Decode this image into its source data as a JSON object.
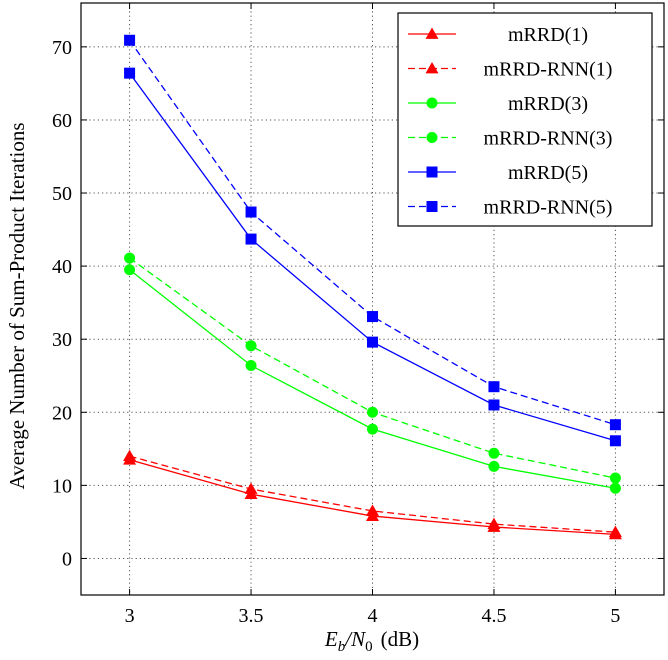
{
  "chart_data": {
    "type": "line",
    "title": "",
    "xlabel": "E_b/N_0 (dB)",
    "xlabel_main": "E",
    "xlabel_sub1": "b",
    "xlabel_slash": "/N",
    "xlabel_sub2": "0",
    "xlabel_unit": "(dB)",
    "ylabel": "Average Number of Sum-Product Iterations",
    "x": [
      3,
      3.5,
      4,
      4.5,
      5
    ],
    "xticks": [
      "3",
      "3.5",
      "4",
      "4.5",
      "5"
    ],
    "yticks": [
      0,
      10,
      20,
      30,
      40,
      50,
      60,
      70
    ],
    "ytick_labels": [
      "0",
      "10",
      "20",
      "30",
      "40",
      "50",
      "60",
      "70"
    ],
    "xlim": [
      2.8,
      5.2
    ],
    "ylim": [
      -5,
      76
    ],
    "grid": true,
    "legend_position": "top-right",
    "series": [
      {
        "name": "mRRD(1)",
        "values": [
          13.5,
          8.8,
          5.8,
          4.3,
          3.3
        ],
        "color": "#ff0000",
        "dash": "solid",
        "marker": "triangle"
      },
      {
        "name": "mRRD-RNN(1)",
        "values": [
          14.0,
          9.5,
          6.5,
          4.7,
          3.6
        ],
        "color": "#ff0000",
        "dash": "dashed",
        "marker": "triangle"
      },
      {
        "name": "mRRD(3)",
        "values": [
          39.5,
          26.4,
          17.7,
          12.6,
          9.6
        ],
        "color": "#00ff00",
        "dash": "solid",
        "marker": "circle"
      },
      {
        "name": "mRRD-RNN(3)",
        "values": [
          41.1,
          29.1,
          20.0,
          14.4,
          11.0
        ],
        "color": "#00ff00",
        "dash": "dashed",
        "marker": "circle"
      },
      {
        "name": "mRRD(5)",
        "values": [
          66.4,
          43.7,
          29.6,
          21.0,
          16.1
        ],
        "color": "#0000ff",
        "dash": "solid",
        "marker": "square"
      },
      {
        "name": "mRRD-RNN(5)",
        "values": [
          70.9,
          47.4,
          33.1,
          23.5,
          18.3
        ],
        "color": "#0000ff",
        "dash": "dashed",
        "marker": "square"
      }
    ]
  }
}
